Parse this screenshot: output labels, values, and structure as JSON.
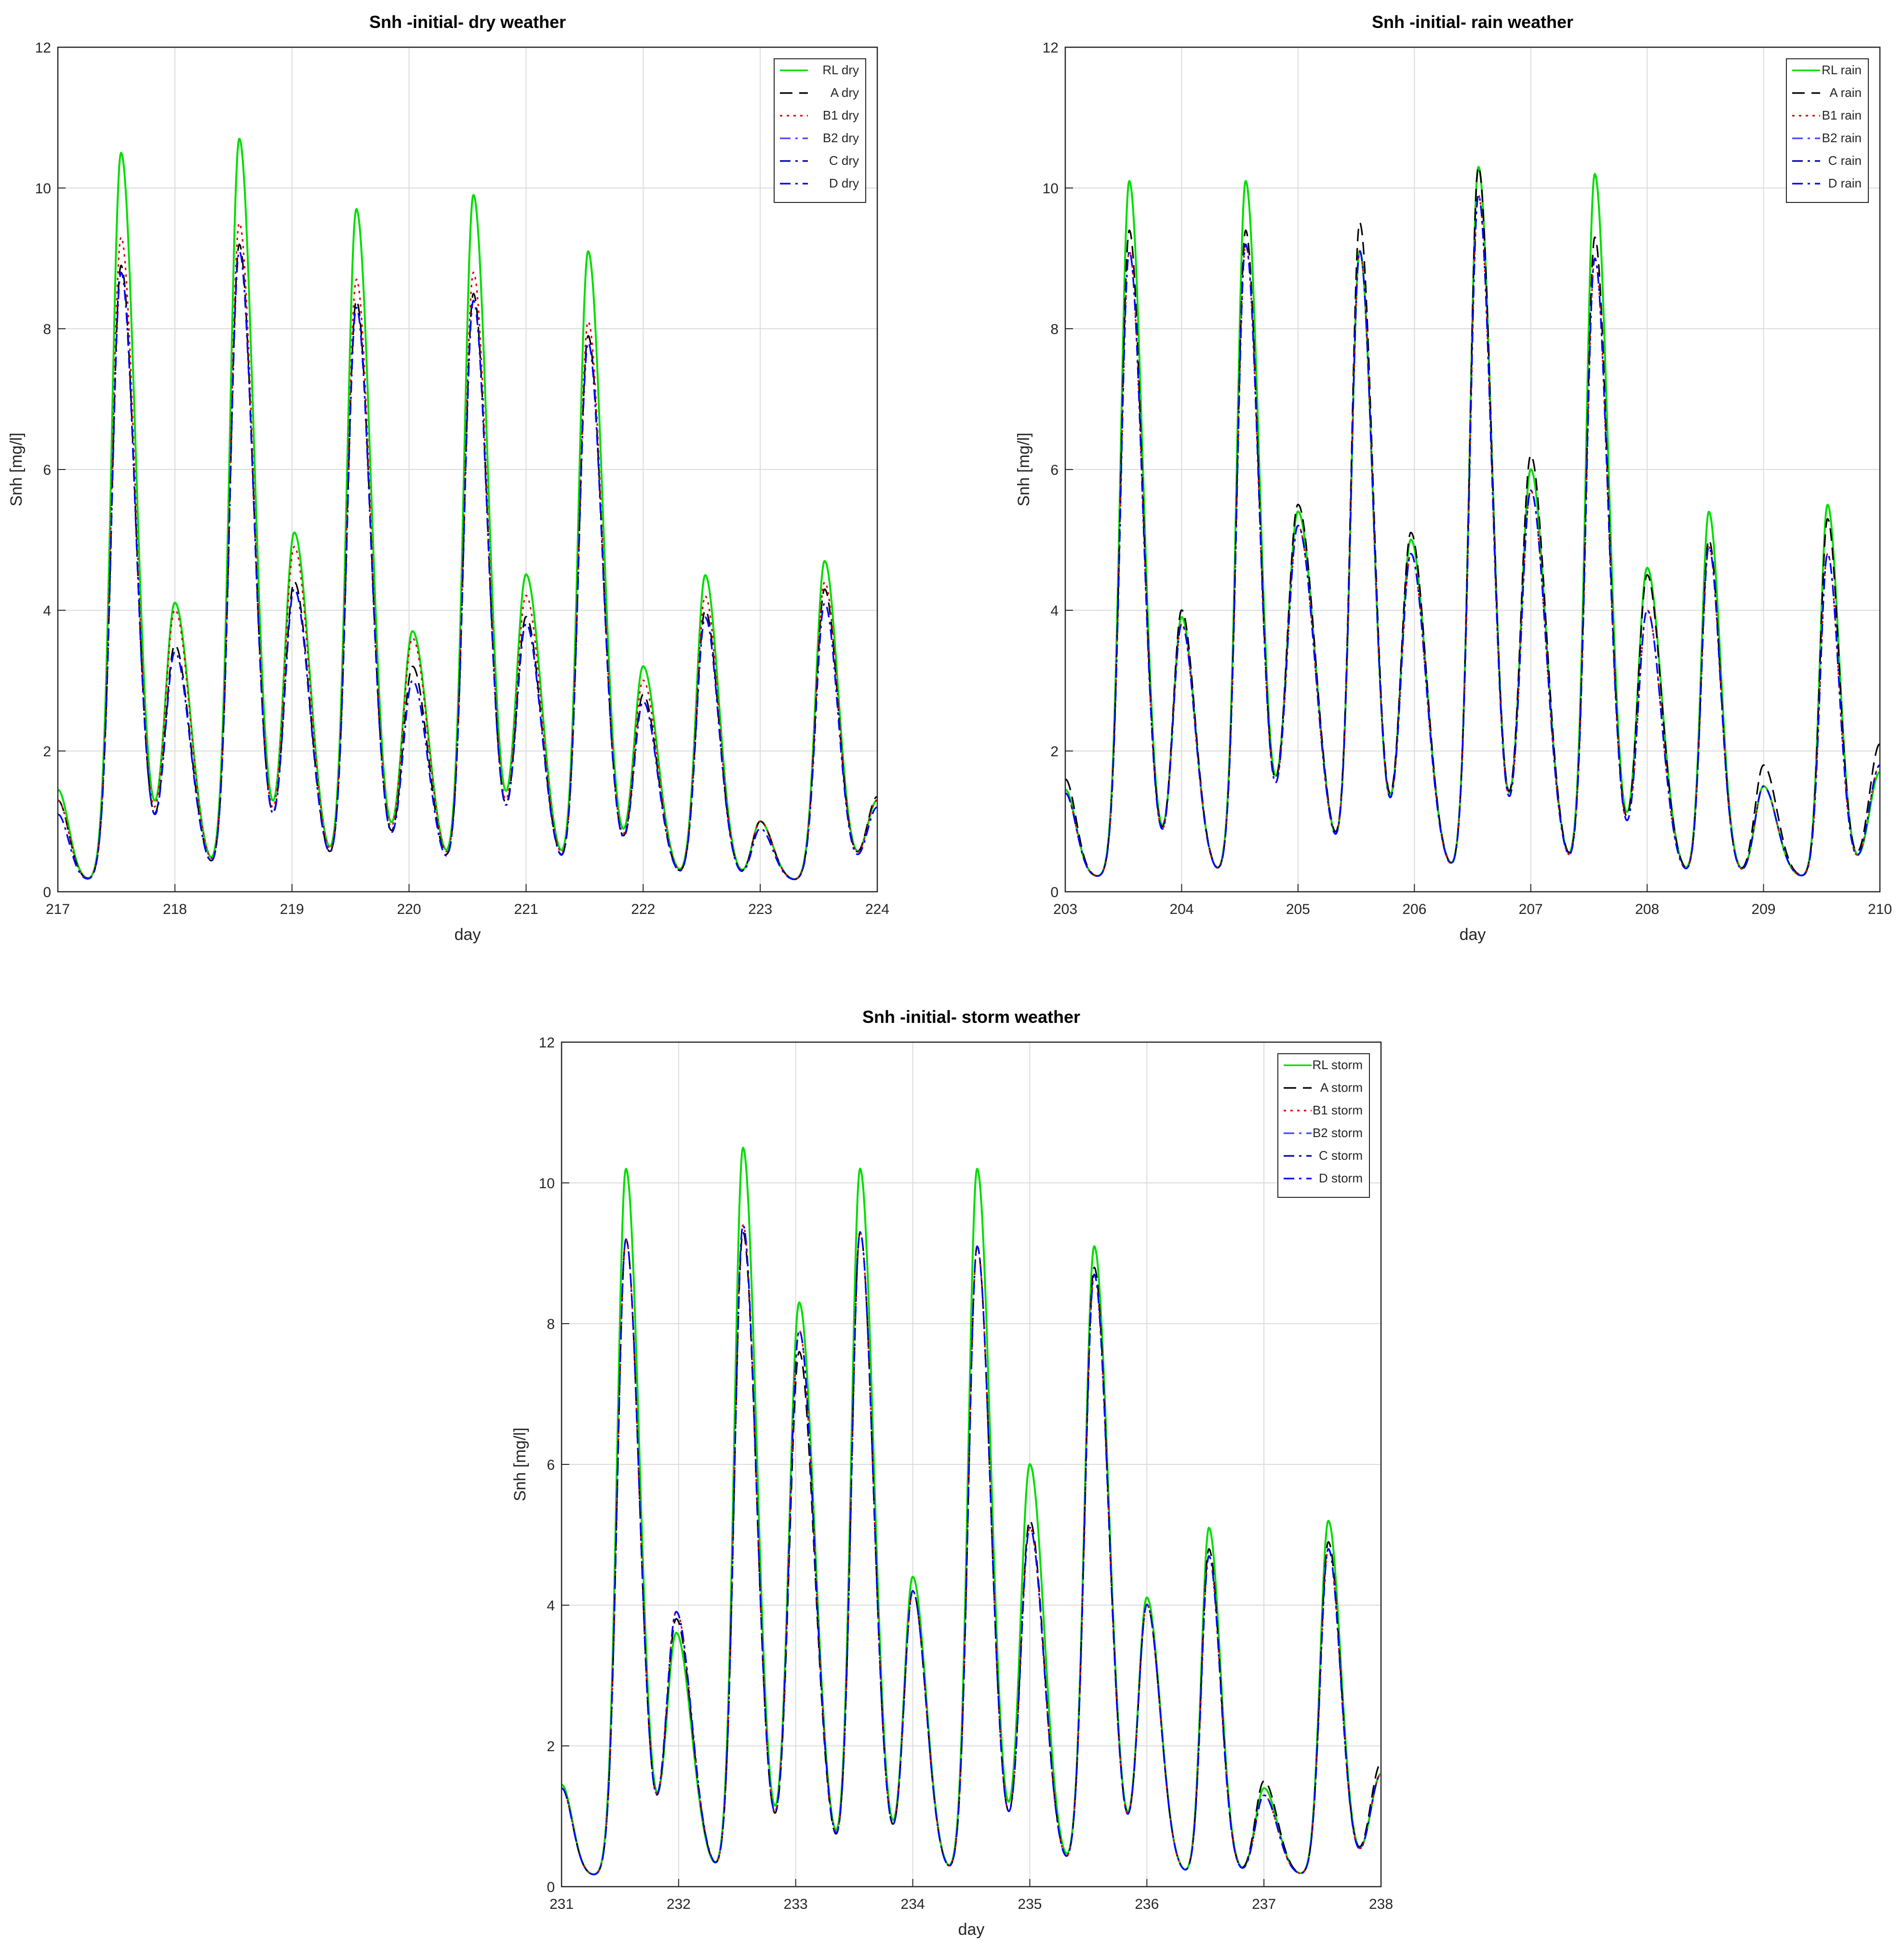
{
  "figure": {
    "background": "#ffffff",
    "grid_color": "#dcdcdc"
  },
  "styles": {
    "RL": {
      "color": "#00dd00",
      "dash": "solid"
    },
    "A": {
      "color": "#000000",
      "dash": "dashed"
    },
    "B1": {
      "color": "#dd0000",
      "dash": "dotted"
    },
    "B2": {
      "color": "#4444ff",
      "dash": "dashdot"
    },
    "C": {
      "color": "#0000aa",
      "dash": "dashdot"
    },
    "D": {
      "color": "#0000ff",
      "dash": "dashdot"
    }
  },
  "chart_data": [
    {
      "type": "line",
      "title": "Snh -initial- dry weather",
      "xlabel": "day",
      "ylabel": "Snh [mg/l]",
      "xlim": [
        217,
        224
      ],
      "ylim": [
        0,
        12
      ],
      "xticks": [
        217,
        218,
        219,
        220,
        221,
        222,
        223,
        224
      ],
      "yticks": [
        0,
        2,
        4,
        6,
        8,
        10,
        12
      ],
      "grid": true,
      "legend_position": "top-right",
      "legend": [
        "RL dry",
        "A dry",
        "B1 dry",
        "B2 dry",
        "C dry",
        "D dry"
      ],
      "peaks": [
        {
          "x": 217.54,
          "w": 0.15,
          "h": {
            "RL": 10.5,
            "A": 8.9,
            "B1": 9.3,
            "B2": 8.8,
            "C": 8.8,
            "D": 8.8
          }
        },
        {
          "x": 218.0,
          "w": 0.16,
          "h": {
            "RL": 4.1,
            "A": 3.5,
            "B1": 4.0,
            "B2": 3.4,
            "C": 3.4,
            "D": 3.4
          }
        },
        {
          "x": 218.55,
          "w": 0.15,
          "h": {
            "RL": 10.7,
            "A": 9.2,
            "B1": 9.5,
            "B2": 9.1,
            "C": 9.1,
            "D": 9.1
          }
        },
        {
          "x": 219.02,
          "w": 0.16,
          "h": {
            "RL": 5.1,
            "A": 4.4,
            "B1": 4.9,
            "B2": 4.3,
            "C": 4.3,
            "D": 4.3
          }
        },
        {
          "x": 219.55,
          "w": 0.15,
          "h": {
            "RL": 9.7,
            "A": 8.4,
            "B1": 8.7,
            "B2": 8.3,
            "C": 8.3,
            "D": 8.3
          }
        },
        {
          "x": 220.03,
          "w": 0.16,
          "h": {
            "RL": 3.7,
            "A": 3.2,
            "B1": 3.6,
            "B2": 3.0,
            "C": 3.0,
            "D": 3.0
          }
        },
        {
          "x": 220.55,
          "w": 0.15,
          "h": {
            "RL": 9.9,
            "A": 8.5,
            "B1": 8.8,
            "B2": 8.4,
            "C": 8.4,
            "D": 8.4
          }
        },
        {
          "x": 221.0,
          "w": 0.16,
          "h": {
            "RL": 4.5,
            "A": 3.9,
            "B1": 4.2,
            "B2": 3.8,
            "C": 3.8,
            "D": 3.8
          }
        },
        {
          "x": 221.53,
          "w": 0.15,
          "h": {
            "RL": 9.1,
            "A": 7.9,
            "B1": 8.1,
            "B2": 7.8,
            "C": 7.8,
            "D": 7.8
          }
        },
        {
          "x": 222.0,
          "w": 0.15,
          "h": {
            "RL": 3.2,
            "A": 2.8,
            "B1": 3.0,
            "B2": 2.7,
            "C": 2.7,
            "D": 2.7
          }
        },
        {
          "x": 222.53,
          "w": 0.14,
          "h": {
            "RL": 4.5,
            "A": 4.0,
            "B1": 4.2,
            "B2": 3.9,
            "C": 3.9,
            "D": 3.9
          }
        },
        {
          "x": 223.0,
          "w": 0.13,
          "h": {
            "RL": 1.0,
            "A": 1.0,
            "B1": 1.0,
            "B2": 0.9,
            "C": 0.9,
            "D": 0.9
          }
        },
        {
          "x": 223.55,
          "w": 0.14,
          "h": {
            "RL": 4.7,
            "A": 4.3,
            "B1": 4.4,
            "B2": 4.1,
            "C": 4.1,
            "D": 4.1
          }
        }
      ],
      "base": 0.15,
      "start": {
        "RL": 1.45,
        "A": 1.3,
        "B1": 1.3,
        "B2": 1.1,
        "C": 1.1,
        "D": 1.1
      },
      "end": {
        "RL": 1.3,
        "A": 1.35,
        "B1": 1.3,
        "B2": 1.2,
        "C": 1.2,
        "D": 1.2
      }
    },
    {
      "type": "line",
      "title": "Snh -initial- rain weather",
      "xlabel": "day",
      "ylabel": "Snh [mg/l]",
      "xlim": [
        203,
        210
      ],
      "ylim": [
        0,
        12
      ],
      "xticks": [
        203,
        204,
        205,
        206,
        207,
        208,
        209,
        210
      ],
      "yticks": [
        0,
        2,
        4,
        6,
        8,
        10,
        12
      ],
      "grid": true,
      "legend_position": "top-right",
      "legend": [
        "RL rain",
        "A rain",
        "B1 rain",
        "B2 rain",
        "C rain",
        "D rain"
      ],
      "peaks": [
        {
          "x": 203.55,
          "w": 0.14,
          "h": {
            "RL": 10.1,
            "A": 9.4,
            "B1": 9.1,
            "B2": 9.1,
            "C": 9.1,
            "D": 9.1
          }
        },
        {
          "x": 204.0,
          "w": 0.14,
          "h": {
            "RL": 3.9,
            "A": 4.0,
            "B1": 3.8,
            "B2": 3.8,
            "C": 3.8,
            "D": 3.8
          }
        },
        {
          "x": 204.55,
          "w": 0.14,
          "h": {
            "RL": 10.1,
            "A": 9.4,
            "B1": 9.2,
            "B2": 9.2,
            "C": 9.2,
            "D": 9.2
          }
        },
        {
          "x": 205.0,
          "w": 0.18,
          "h": {
            "RL": 5.4,
            "A": 5.5,
            "B1": 5.2,
            "B2": 5.2,
            "C": 5.2,
            "D": 5.2
          }
        },
        {
          "x": 205.53,
          "w": 0.14,
          "h": {
            "RL": 9.1,
            "A": 9.5,
            "B1": 9.1,
            "B2": 9.1,
            "C": 9.1,
            "D": 9.1
          }
        },
        {
          "x": 205.97,
          "w": 0.16,
          "h": {
            "RL": 5.0,
            "A": 5.1,
            "B1": 4.8,
            "B2": 4.8,
            "C": 4.8,
            "D": 4.8
          }
        },
        {
          "x": 206.55,
          "w": 0.14,
          "h": {
            "RL": 10.3,
            "A": 10.3,
            "B1": 9.9,
            "B2": 9.9,
            "C": 9.9,
            "D": 9.9
          }
        },
        {
          "x": 207.0,
          "w": 0.16,
          "h": {
            "RL": 6.0,
            "A": 6.2,
            "B1": 5.7,
            "B2": 5.7,
            "C": 5.7,
            "D": 5.7
          }
        },
        {
          "x": 207.55,
          "w": 0.14,
          "h": {
            "RL": 10.2,
            "A": 9.3,
            "B1": 9.0,
            "B2": 9.0,
            "C": 9.0,
            "D": 9.0
          }
        },
        {
          "x": 208.0,
          "w": 0.15,
          "h": {
            "RL": 4.6,
            "A": 4.5,
            "B1": 4.0,
            "B2": 4.0,
            "C": 4.0,
            "D": 4.0
          }
        },
        {
          "x": 208.53,
          "w": 0.12,
          "h": {
            "RL": 5.4,
            "A": 5.0,
            "B1": 4.9,
            "B2": 4.9,
            "C": 4.9,
            "D": 4.9
          }
        },
        {
          "x": 209.0,
          "w": 0.14,
          "h": {
            "RL": 1.5,
            "A": 1.8,
            "B1": 1.5,
            "B2": 1.5,
            "C": 1.5,
            "D": 1.5
          }
        },
        {
          "x": 209.55,
          "w": 0.12,
          "h": {
            "RL": 5.5,
            "A": 5.3,
            "B1": 4.8,
            "B2": 4.8,
            "C": 4.8,
            "D": 4.8
          }
        }
      ],
      "base": 0.2,
      "start": {
        "RL": 1.45,
        "A": 1.6,
        "B1": 1.4,
        "B2": 1.4,
        "C": 1.4,
        "D": 1.4
      },
      "end": {
        "RL": 1.7,
        "A": 2.1,
        "B1": 1.8,
        "B2": 1.8,
        "C": 1.8,
        "D": 1.8
      }
    },
    {
      "type": "line",
      "title": "Snh -initial- storm weather",
      "xlabel": "day",
      "ylabel": "Snh [mg/l]",
      "xlim": [
        231,
        238
      ],
      "ylim": [
        0,
        12
      ],
      "xticks": [
        231,
        232,
        233,
        234,
        235,
        236,
        237,
        238
      ],
      "yticks": [
        0,
        2,
        4,
        6,
        8,
        10,
        12
      ],
      "grid": true,
      "legend_position": "top-right",
      "legend": [
        "RL storm",
        "A storm",
        "B1 storm",
        "B2 storm",
        "C storm",
        "D storm"
      ],
      "peaks": [
        {
          "x": 231.55,
          "w": 0.14,
          "h": {
            "RL": 10.2,
            "A": 9.2,
            "B1": 9.2,
            "B2": 9.2,
            "C": 9.2,
            "D": 9.2
          }
        },
        {
          "x": 231.98,
          "w": 0.16,
          "h": {
            "RL": 3.6,
            "A": 3.8,
            "B1": 3.9,
            "B2": 3.9,
            "C": 3.9,
            "D": 3.9
          }
        },
        {
          "x": 232.55,
          "w": 0.14,
          "h": {
            "RL": 10.5,
            "A": 9.3,
            "B1": 9.4,
            "B2": 9.4,
            "C": 9.4,
            "D": 9.4
          }
        },
        {
          "x": 233.03,
          "w": 0.16,
          "h": {
            "RL": 8.3,
            "A": 7.6,
            "B1": 7.9,
            "B2": 7.9,
            "C": 7.9,
            "D": 7.9
          }
        },
        {
          "x": 233.55,
          "w": 0.14,
          "h": {
            "RL": 10.2,
            "A": 9.3,
            "B1": 9.3,
            "B2": 9.3,
            "C": 9.3,
            "D": 9.3
          }
        },
        {
          "x": 234.0,
          "w": 0.14,
          "h": {
            "RL": 4.4,
            "A": 4.2,
            "B1": 4.2,
            "B2": 4.2,
            "C": 4.2,
            "D": 4.2
          }
        },
        {
          "x": 234.55,
          "w": 0.14,
          "h": {
            "RL": 10.2,
            "A": 9.1,
            "B1": 9.1,
            "B2": 9.1,
            "C": 9.1,
            "D": 9.1
          }
        },
        {
          "x": 235.0,
          "w": 0.15,
          "h": {
            "RL": 6.0,
            "A": 5.2,
            "B1": 5.1,
            "B2": 5.1,
            "C": 5.1,
            "D": 5.1
          }
        },
        {
          "x": 235.55,
          "w": 0.15,
          "h": {
            "RL": 9.1,
            "A": 8.8,
            "B1": 8.7,
            "B2": 8.7,
            "C": 8.7,
            "D": 8.7
          }
        },
        {
          "x": 236.0,
          "w": 0.14,
          "h": {
            "RL": 4.1,
            "A": 4.0,
            "B1": 4.0,
            "B2": 4.0,
            "C": 4.0,
            "D": 4.0
          }
        },
        {
          "x": 236.53,
          "w": 0.12,
          "h": {
            "RL": 5.1,
            "A": 4.8,
            "B1": 4.7,
            "B2": 4.7,
            "C": 4.7,
            "D": 4.7
          }
        },
        {
          "x": 237.0,
          "w": 0.14,
          "h": {
            "RL": 1.4,
            "A": 1.5,
            "B1": 1.3,
            "B2": 1.3,
            "C": 1.3,
            "D": 1.3
          }
        },
        {
          "x": 237.55,
          "w": 0.13,
          "h": {
            "RL": 5.2,
            "A": 4.9,
            "B1": 4.8,
            "B2": 4.8,
            "C": 4.8,
            "D": 4.8
          }
        }
      ],
      "base": 0.15,
      "start": {
        "RL": 1.45,
        "A": 1.4,
        "B1": 1.4,
        "B2": 1.4,
        "C": 1.4,
        "D": 1.4
      },
      "end": {
        "RL": 1.6,
        "A": 1.75,
        "B1": 1.6,
        "B2": 1.6,
        "C": 1.6,
        "D": 1.6
      }
    }
  ]
}
